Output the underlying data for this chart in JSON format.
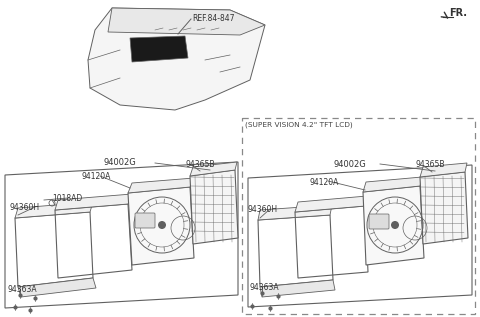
{
  "bg_color": "#ffffff",
  "line_color": "#606060",
  "text_color": "#333333",
  "fr_label": "FR.",
  "ref_label": "REF.84-847",
  "super_vision_label": "(SUPER VISION 4.2\" TFT LCD)",
  "part_left": {
    "main": "94002G",
    "p1": "94365B",
    "p2": "94120A",
    "p3": "94360H",
    "p4": "94363A",
    "p5": "1018AD"
  },
  "part_right": {
    "main": "94002G",
    "p1": "94365B",
    "p2": "94120A",
    "p3": "94360H",
    "p4": "94363A"
  }
}
